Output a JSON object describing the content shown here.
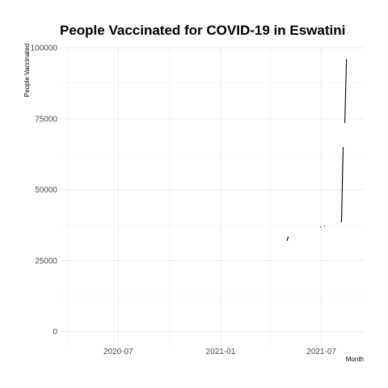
{
  "chart_data": {
    "type": "line",
    "title": "People Vaccinated for COVID-19 in Eswatini",
    "xlabel": "Month",
    "ylabel": "People Vaccinated",
    "x_ticks": [
      "2020-07",
      "2021-01",
      "2021-07"
    ],
    "y_ticks": [
      "0",
      "25000",
      "50000",
      "75000",
      "100000"
    ],
    "xlim": [
      "2020-03-18",
      "2021-09-15"
    ],
    "ylim": [
      -4500,
      100000
    ],
    "grid": true,
    "legend": "none",
    "colors": {
      "line": "#000000",
      "grid": "#ebebeb"
    },
    "segments": [
      [
        [
          "2021-04-30",
          32000
        ],
        [
          "2021-05-02",
          33200
        ],
        [
          "2021-05-03",
          33400
        ]
      ],
      [
        [
          "2021-06-29",
          36800
        ],
        [
          "2021-06-30",
          36900
        ]
      ],
      [
        [
          "2021-07-06",
          37200
        ],
        [
          "2021-07-07",
          37300
        ]
      ],
      [
        [
          "2021-08-06",
          38500
        ],
        [
          "2021-08-09",
          65000
        ]
      ],
      [
        [
          "2021-08-12",
          73500
        ],
        [
          "2021-08-15",
          96000
        ]
      ]
    ]
  }
}
